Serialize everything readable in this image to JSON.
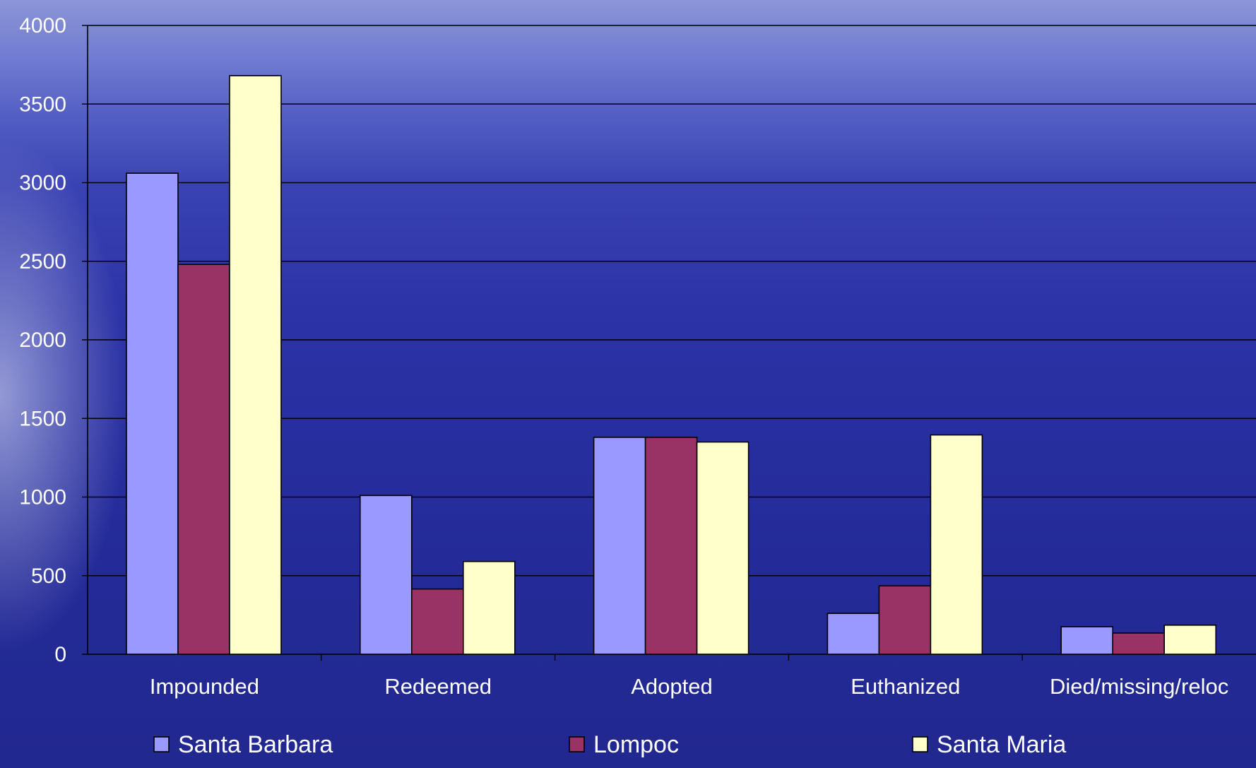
{
  "chart_data": {
    "type": "bar",
    "categories": [
      "Impounded",
      "Redeemed",
      "Adopted",
      "Euthanized",
      "Died/missing/reloc"
    ],
    "series": [
      {
        "name": "Santa Barbara",
        "values": [
          3060,
          1010,
          1380,
          260,
          175
        ],
        "color": "#9999ff"
      },
      {
        "name": "Lompoc",
        "values": [
          2480,
          415,
          1380,
          435,
          135
        ],
        "color": "#993366"
      },
      {
        "name": "Santa Maria",
        "values": [
          3680,
          590,
          1350,
          1395,
          185
        ],
        "color": "#ffffcc"
      }
    ],
    "yticks": [
      0,
      500,
      1000,
      1500,
      2000,
      2500,
      3000,
      3500,
      4000
    ],
    "ylim": [
      0,
      4000
    ],
    "grid": true,
    "legend_position": "bottom",
    "colors": {
      "text": "#ffffff",
      "grid": "#000000",
      "bar_outline": "#000000"
    }
  }
}
